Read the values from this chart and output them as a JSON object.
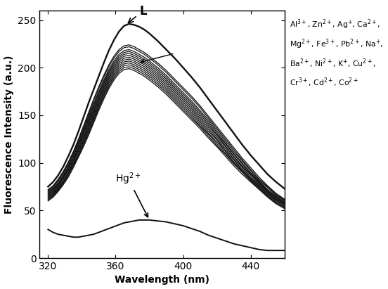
{
  "xlabel": "Wavelength (nm)",
  "ylabel": "Fluorescence Intensity (a.u.)",
  "xlim": [
    315,
    460
  ],
  "ylim": [
    0,
    260
  ],
  "xticks": [
    320,
    360,
    400,
    440
  ],
  "yticks": [
    0,
    50,
    100,
    150,
    200,
    250
  ],
  "background_color": "#ffffff",
  "curve_color": "#111111",
  "axis_fontsize": 10,
  "tick_fontsize": 10,
  "annotation_L": "L",
  "annotation_Hg": "Hg$^{2+}$",
  "annotation_ions": "Al$^{3+}$, Zn$^{2+}$, Ag$^{+}$, Ca$^{2+}$,\nMg$^{2+}$, Fe$^{3+}$, Pb$^{2+}$, Na$^{+}$,\nBa$^{2+}$, Ni$^{2+}$, K$^{+}$, Cu$^{2+}$,\nCr$^{3+}$, Cd$^{2+}$, Co$^{2+}$",
  "wavelengths": [
    320,
    323,
    326,
    329,
    332,
    335,
    338,
    341,
    344,
    347,
    350,
    353,
    356,
    359,
    362,
    365,
    368,
    371,
    374,
    377,
    380,
    385,
    390,
    395,
    400,
    405,
    410,
    415,
    420,
    425,
    430,
    435,
    440,
    445,
    450,
    455,
    460
  ],
  "L_curve": [
    75,
    80,
    87,
    96,
    107,
    119,
    133,
    148,
    163,
    177,
    191,
    205,
    218,
    229,
    238,
    244,
    246,
    245,
    243,
    240,
    236,
    228,
    219,
    210,
    200,
    190,
    179,
    167,
    155,
    143,
    131,
    119,
    108,
    98,
    88,
    80,
    73
  ],
  "hg_curve": [
    30,
    27,
    25,
    24,
    23,
    22,
    22,
    23,
    24,
    25,
    27,
    29,
    31,
    33,
    35,
    37,
    38,
    39,
    40,
    40,
    40,
    39,
    38,
    36,
    34,
    31,
    28,
    24,
    21,
    18,
    15,
    13,
    11,
    9,
    8,
    8,
    8
  ],
  "other_curves": [
    [
      72,
      76,
      83,
      91,
      101,
      112,
      125,
      139,
      153,
      167,
      180,
      192,
      203,
      212,
      219,
      223,
      224,
      222,
      219,
      216,
      212,
      205,
      197,
      188,
      179,
      170,
      160,
      149,
      138,
      127,
      116,
      105,
      95,
      85,
      76,
      68,
      62
    ],
    [
      71,
      75,
      82,
      90,
      100,
      111,
      124,
      137,
      151,
      165,
      178,
      190,
      201,
      210,
      217,
      221,
      222,
      220,
      217,
      214,
      210,
      203,
      195,
      186,
      177,
      168,
      158,
      147,
      136,
      125,
      114,
      103,
      93,
      83,
      75,
      67,
      61
    ],
    [
      70,
      74,
      81,
      89,
      99,
      110,
      122,
      135,
      149,
      162,
      175,
      187,
      198,
      207,
      214,
      218,
      219,
      217,
      214,
      211,
      207,
      200,
      192,
      183,
      174,
      165,
      155,
      145,
      134,
      123,
      112,
      102,
      92,
      82,
      74,
      66,
      60
    ],
    [
      69,
      73,
      79,
      87,
      97,
      108,
      120,
      133,
      147,
      160,
      173,
      185,
      196,
      205,
      212,
      216,
      217,
      215,
      212,
      209,
      205,
      198,
      190,
      181,
      172,
      163,
      153,
      143,
      132,
      121,
      110,
      100,
      90,
      81,
      72,
      65,
      59
    ],
    [
      68,
      72,
      78,
      86,
      96,
      107,
      119,
      132,
      145,
      158,
      171,
      183,
      194,
      203,
      210,
      214,
      215,
      213,
      210,
      207,
      203,
      196,
      188,
      179,
      170,
      161,
      151,
      141,
      130,
      120,
      109,
      99,
      89,
      80,
      71,
      64,
      58
    ],
    [
      67,
      71,
      77,
      85,
      94,
      105,
      117,
      130,
      143,
      156,
      169,
      181,
      192,
      201,
      208,
      212,
      213,
      211,
      208,
      205,
      201,
      194,
      186,
      177,
      168,
      159,
      149,
      139,
      129,
      118,
      107,
      97,
      88,
      79,
      71,
      63,
      58
    ],
    [
      66,
      70,
      76,
      84,
      93,
      104,
      115,
      128,
      141,
      154,
      167,
      179,
      190,
      199,
      206,
      210,
      211,
      209,
      206,
      203,
      199,
      192,
      184,
      175,
      166,
      157,
      147,
      137,
      127,
      117,
      106,
      96,
      87,
      78,
      70,
      62,
      57
    ],
    [
      65,
      69,
      75,
      83,
      92,
      102,
      114,
      126,
      139,
      152,
      165,
      177,
      188,
      197,
      204,
      208,
      209,
      207,
      204,
      201,
      197,
      190,
      182,
      173,
      164,
      155,
      145,
      135,
      125,
      115,
      104,
      95,
      85,
      77,
      69,
      62,
      57
    ],
    [
      64,
      68,
      74,
      81,
      90,
      101,
      112,
      124,
      137,
      150,
      163,
      175,
      186,
      195,
      202,
      206,
      207,
      205,
      202,
      199,
      195,
      188,
      180,
      171,
      162,
      153,
      143,
      133,
      124,
      113,
      103,
      93,
      84,
      76,
      68,
      61,
      56
    ],
    [
      63,
      67,
      73,
      80,
      89,
      99,
      110,
      122,
      135,
      148,
      161,
      173,
      184,
      193,
      200,
      204,
      205,
      203,
      200,
      197,
      193,
      186,
      178,
      169,
      160,
      151,
      141,
      131,
      122,
      112,
      101,
      92,
      83,
      75,
      67,
      60,
      55
    ],
    [
      62,
      66,
      72,
      79,
      88,
      98,
      109,
      121,
      133,
      146,
      159,
      171,
      182,
      191,
      198,
      202,
      203,
      201,
      198,
      195,
      191,
      184,
      176,
      167,
      158,
      149,
      139,
      130,
      120,
      110,
      100,
      91,
      82,
      74,
      66,
      59,
      54
    ],
    [
      61,
      65,
      71,
      78,
      87,
      97,
      107,
      119,
      131,
      144,
      157,
      169,
      180,
      189,
      196,
      200,
      201,
      199,
      196,
      193,
      189,
      182,
      174,
      165,
      156,
      147,
      138,
      128,
      118,
      109,
      99,
      90,
      81,
      73,
      65,
      58,
      53
    ],
    [
      60,
      64,
      70,
      77,
      85,
      95,
      106,
      117,
      129,
      142,
      155,
      167,
      178,
      187,
      194,
      198,
      199,
      197,
      194,
      191,
      187,
      180,
      172,
      163,
      154,
      145,
      136,
      126,
      117,
      107,
      97,
      88,
      80,
      72,
      64,
      57,
      52
    ]
  ]
}
